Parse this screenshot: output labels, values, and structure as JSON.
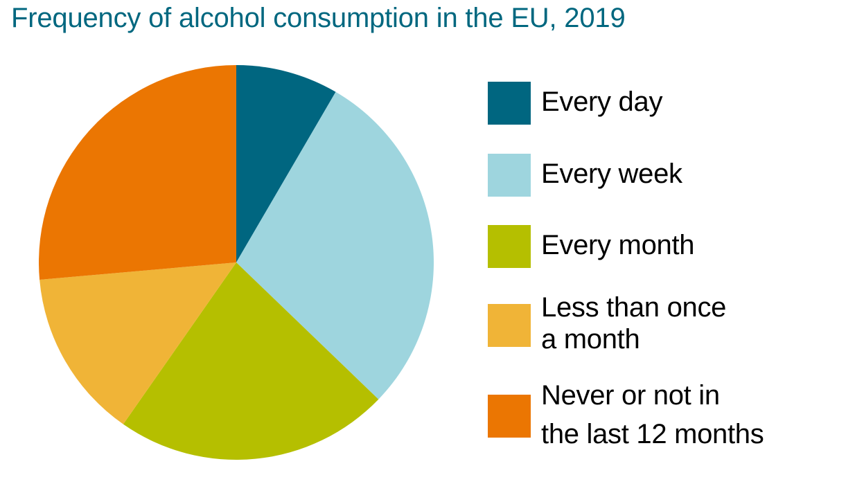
{
  "title": "Frequency of alcohol consumption in the EU, 2019",
  "legend": [
    {
      "label": "Every day",
      "label2": "",
      "color": "#006680"
    },
    {
      "label": "Every week",
      "label2": "",
      "color": "#9ed5de"
    },
    {
      "label": "Every month",
      "label2": "",
      "color": "#b5bf00"
    },
    {
      "label": "Less than once",
      "label2": "a month",
      "color": "#f0b437"
    },
    {
      "label": "Never or not in",
      "label2": "the last 12 months",
      "color": "#eb7602"
    }
  ],
  "chart_data": {
    "type": "pie",
    "title": "Frequency of alcohol consumption in the EU, 2019",
    "categories": [
      "Every day",
      "Every week",
      "Every month",
      "Less than once a month",
      "Never or not in the last 12 months"
    ],
    "values": [
      8.4,
      28.8,
      22.5,
      13.9,
      26.4
    ],
    "unit": "% (estimated from slice angles)",
    "colors": [
      "#006680",
      "#9ed5de",
      "#b5bf00",
      "#f0b437",
      "#eb7602"
    ],
    "start_angle": "12 o'clock, clockwise",
    "legend_position": "right"
  }
}
